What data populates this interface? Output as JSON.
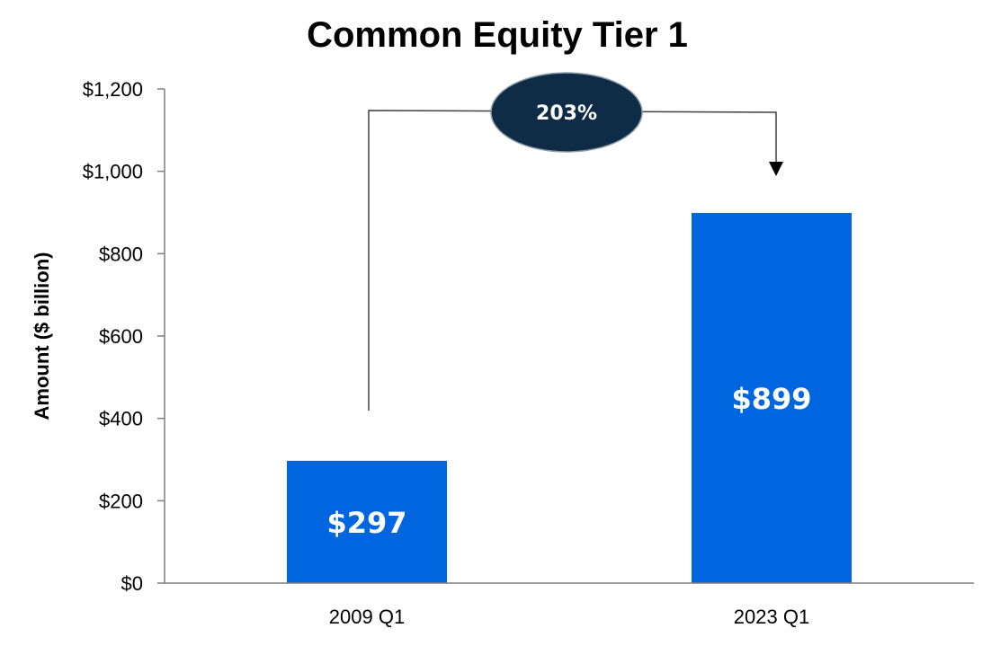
{
  "chart_data": {
    "type": "bar",
    "title": "Common Equity Tier 1",
    "xlabel": "",
    "ylabel": "Amount ($ billion)",
    "categories": [
      "2009 Q1",
      "2023 Q1"
    ],
    "values": [
      297,
      899
    ],
    "data_labels": [
      "$297",
      "$899"
    ],
    "ylim": [
      0,
      1200
    ],
    "yticks": [
      0,
      200,
      400,
      600,
      800,
      1000,
      1200
    ],
    "ytick_labels": [
      "$0",
      "$200",
      "$400",
      "$600",
      "$800",
      "$1,000",
      "$1,200"
    ],
    "grid": false,
    "legend": "none",
    "bar_color": "#0066E0",
    "annotation": {
      "text": "203%",
      "from": "2009 Q1",
      "to": "2023 Q1",
      "badge_color": "#0F2C46"
    }
  }
}
